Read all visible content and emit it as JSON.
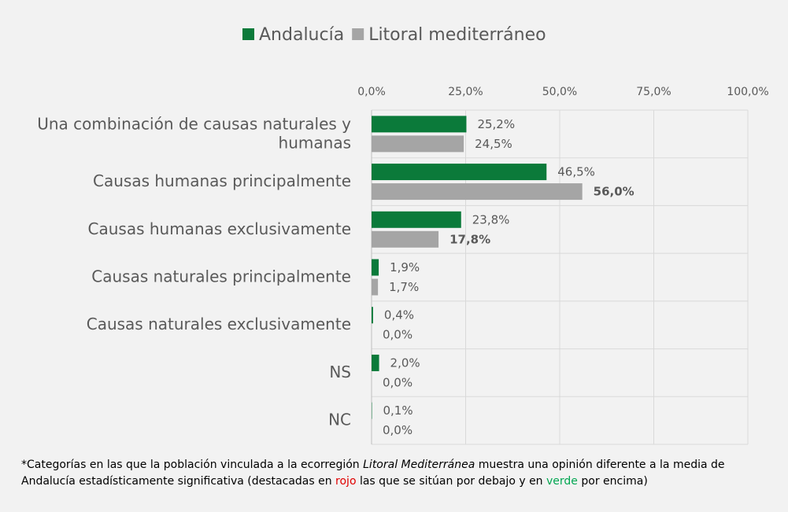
{
  "chart_data": {
    "type": "barh",
    "categories": [
      "Una combinación de causas naturales y humanas",
      "Causas humanas principalmente",
      "Causas humanas exclusivamente",
      "Causas naturales principalmente",
      "Causas naturales exclusivamente",
      "NS",
      "NC"
    ],
    "category_lines": [
      [
        "Una combinación de causas naturales y",
        "humanas"
      ],
      [
        "Causas humanas principalmente"
      ],
      [
        "Causas humanas exclusivamente"
      ],
      [
        "Causas naturales principalmente"
      ],
      [
        "Causas naturales exclusivamente"
      ],
      [
        "NS"
      ],
      [
        "NC"
      ]
    ],
    "series": [
      {
        "name": "Andalucía",
        "color": "#0b7a3a",
        "values": [
          25.2,
          46.5,
          23.8,
          1.9,
          0.4,
          2.0,
          0.1
        ],
        "value_labels": [
          "25,2%",
          "46,5%",
          "23,8%",
          "1,9%",
          "0,4%",
          "2,0%",
          "0,1%"
        ],
        "value_label_colors": [
          "#595959",
          "#595959",
          "#595959",
          "#595959",
          "#595959",
          "#595959",
          "#595959"
        ]
      },
      {
        "name": "Litoral mediterráneo",
        "color": "#a5a5a5",
        "values": [
          24.5,
          56.0,
          17.8,
          1.7,
          0.0,
          0.0,
          0.0
        ],
        "value_labels": [
          "24,5%",
          "56,0%",
          "17,8%",
          "1,7%",
          "0,0%",
          "0,0%",
          "0,0%"
        ],
        "value_label_colors": [
          "#595959",
          "#00a651",
          "#e00000",
          "#595959",
          "#595959",
          "#595959",
          "#595959"
        ]
      }
    ],
    "xlim": [
      0,
      100
    ],
    "xticks": [
      {
        "value": 0,
        "label": "0,0%"
      },
      {
        "value": 25,
        "label": "25,0%"
      },
      {
        "value": 50,
        "label": "50,0%"
      },
      {
        "value": 75,
        "label": "75,0%"
      },
      {
        "value": 100,
        "label": "100,0%"
      }
    ],
    "grid": true,
    "legend": "top",
    "footnote": [
      {
        "text": "*Categorías en las que la población vinculada a la ecorregión "
      },
      {
        "text": "Litoral Mediterránea",
        "style": "italic"
      },
      {
        "text": " muestra una opinión diferente a la media de Andalucía estadísticamente significativa (destacadas en "
      },
      {
        "text": "rojo",
        "color": "#e00000"
      },
      {
        "text": " las que se sitúan por debajo y en "
      },
      {
        "text": "verde",
        "color": "#00a651"
      },
      {
        "text": " por encima)"
      }
    ]
  }
}
